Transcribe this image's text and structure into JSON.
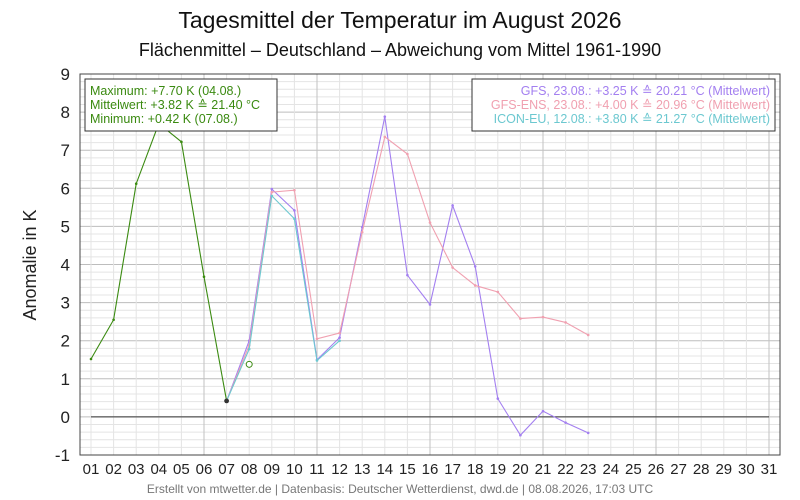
{
  "chart_data": {
    "type": "line",
    "title": "Tagesmittel der Temperatur im August 2026",
    "subtitle": "Flächenmittel – Deutschland – Abweichung vom Mittel 1961-1990",
    "ylabel": "Anomalie in K",
    "xlabel": "",
    "ylim": [
      -1,
      9
    ],
    "xlim": [
      1,
      31
    ],
    "grid": true,
    "x_ticks": [
      "01",
      "02",
      "03",
      "04",
      "05",
      "06",
      "07",
      "08",
      "09",
      "10",
      "11",
      "12",
      "13",
      "14",
      "15",
      "16",
      "17",
      "18",
      "19",
      "20",
      "21",
      "22",
      "23",
      "24",
      "25",
      "26",
      "27",
      "28",
      "29",
      "30",
      "31"
    ],
    "y_ticks": [
      "-1",
      "0",
      "1",
      "2",
      "3",
      "4",
      "5",
      "6",
      "7",
      "8",
      "9"
    ],
    "stats_box": {
      "lines": [
        "Maximum: +7.70 K  (04.08.)",
        "Mittelwert: +3.82 K  ≙  21.40 °C",
        "Minimum:  +0.42 K  (07.08.)"
      ],
      "color": "#3a8a10"
    },
    "model_legend": {
      "lines": [
        "GFS, 23.08.: +3.25 K  ≙  20.21 °C (Mittelwert)",
        "GFS-ENS, 23.08.: +4.00 K  ≙  20.96 °C (Mittelwert)",
        "ICON-EU, 12.08.: +3.80 K  ≙  21.27 °C (Mittelwert)"
      ]
    },
    "footer": "Erstellt von mtwetter.de | Datenbasis: Deutscher Wetterdienst, dwd.de | 08.08.2026, 17:03 UTC",
    "observed_marker": {
      "x": 8,
      "y": 1.38
    },
    "series": [
      {
        "color": "#3a8a10",
        "x": [
          1,
          2,
          3,
          4,
          5,
          6,
          7
        ],
        "values": [
          1.52,
          2.55,
          6.12,
          7.7,
          7.22,
          3.68,
          0.42
        ]
      },
      {
        "color": "#a37ff0",
        "x": [
          7,
          8,
          9,
          10,
          11,
          12,
          13,
          14,
          15,
          16,
          17,
          18,
          19,
          20,
          21,
          22,
          23
        ],
        "values": [
          0.42,
          2.0,
          5.98,
          5.42,
          1.5,
          2.08,
          4.98,
          7.88,
          3.72,
          2.95,
          5.55,
          3.95,
          0.48,
          -0.48,
          0.15,
          -0.15,
          -0.42
        ]
      },
      {
        "color": "#f0a0b0",
        "x": [
          7,
          8,
          9,
          10,
          11,
          12,
          13,
          14,
          15,
          16,
          17,
          18,
          19,
          20,
          21,
          22,
          23
        ],
        "values": [
          0.42,
          1.88,
          5.9,
          5.95,
          2.05,
          2.2,
          4.85,
          7.35,
          6.9,
          5.1,
          3.92,
          3.45,
          3.28,
          2.58,
          2.62,
          2.48,
          2.15
        ]
      },
      {
        "color": "#6cc8d0",
        "x": [
          7,
          8,
          9,
          10,
          11,
          12
        ],
        "values": [
          0.42,
          1.78,
          5.8,
          5.2,
          1.48,
          2.0
        ]
      }
    ]
  }
}
